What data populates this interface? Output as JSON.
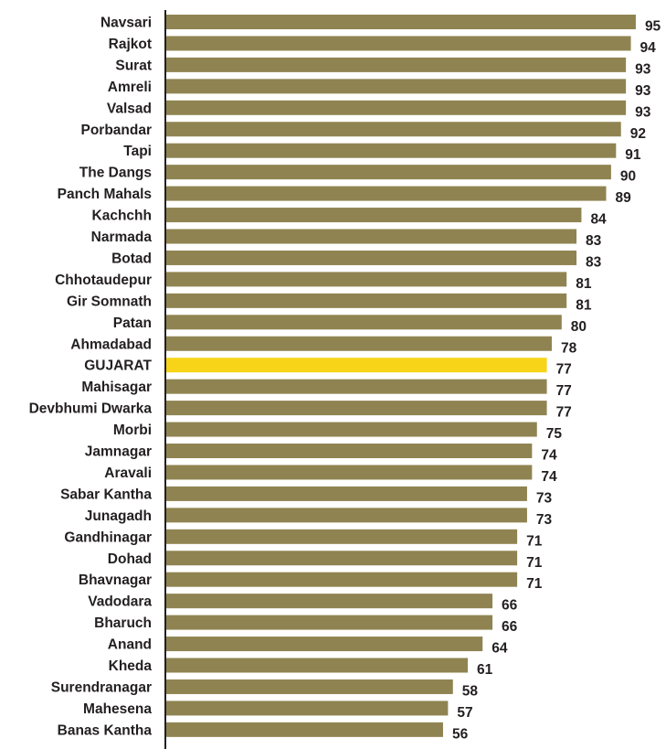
{
  "chart_data": {
    "type": "bar",
    "orientation": "horizontal",
    "title": "",
    "xlabel": "",
    "ylabel": "",
    "xlim": [
      0,
      95
    ],
    "grid": false,
    "legend": "none",
    "categories": [
      "Navsari",
      "Rajkot",
      "Surat",
      "Amreli",
      "Valsad",
      "Porbandar",
      "Tapi",
      "The Dangs",
      "Panch Mahals",
      "Kachchh",
      "Narmada",
      "Botad",
      "Chhotaudepur",
      "Gir Somnath",
      "Patan",
      "Ahmadabad",
      "GUJARAT",
      "Mahisagar",
      "Devbhumi Dwarka",
      "Morbi",
      "Jamnagar",
      "Aravali",
      "Sabar Kantha",
      "Junagadh",
      "Gandhinagar",
      "Dohad",
      "Bhavnagar",
      "Vadodara",
      "Bharuch",
      "Anand",
      "Kheda",
      "Surendranagar",
      "Mahesena",
      "Banas Kantha"
    ],
    "values": [
      95,
      94,
      93,
      93,
      93,
      92,
      91,
      90,
      89,
      84,
      83,
      83,
      81,
      81,
      80,
      78,
      77,
      77,
      77,
      75,
      74,
      74,
      73,
      73,
      71,
      71,
      71,
      66,
      66,
      64,
      61,
      58,
      57,
      56
    ],
    "highlight_category": "GUJARAT",
    "colors": {
      "bar": "#8f8451",
      "highlight": "#f7d417",
      "axis": "#231f20",
      "text": "#231f20"
    }
  }
}
